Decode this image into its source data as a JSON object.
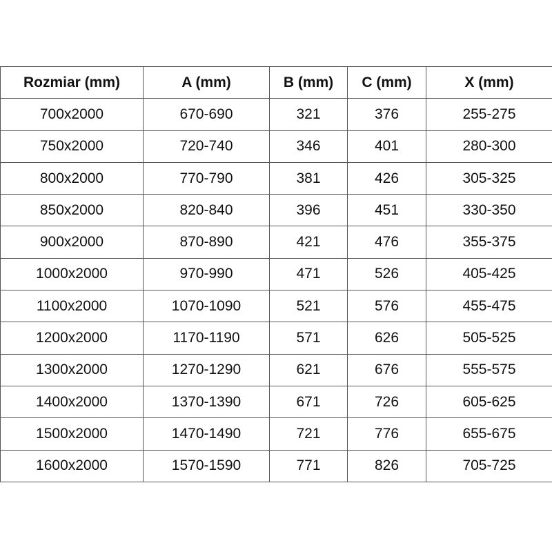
{
  "headers": [
    "Rozmiar (mm)",
    "A (mm)",
    "B (mm)",
    "C (mm)",
    "X (mm)"
  ],
  "rows": [
    [
      "700x2000",
      "670-690",
      "321",
      "376",
      "255-275"
    ],
    [
      "750x2000",
      "720-740",
      "346",
      "401",
      "280-300"
    ],
    [
      "800x2000",
      "770-790",
      "381",
      "426",
      "305-325"
    ],
    [
      "850x2000",
      "820-840",
      "396",
      "451",
      "330-350"
    ],
    [
      "900x2000",
      "870-890",
      "421",
      "476",
      "355-375"
    ],
    [
      "1000x2000",
      "970-990",
      "471",
      "526",
      "405-425"
    ],
    [
      "1100x2000",
      "1070-1090",
      "521",
      "576",
      "455-475"
    ],
    [
      "1200x2000",
      "1170-1190",
      "571",
      "626",
      "505-525"
    ],
    [
      "1300x2000",
      "1270-1290",
      "621",
      "676",
      "555-575"
    ],
    [
      "1400x2000",
      "1370-1390",
      "671",
      "726",
      "605-625"
    ],
    [
      "1500x2000",
      "1470-1490",
      "721",
      "776",
      "655-675"
    ],
    [
      "1600x2000",
      "1570-1590",
      "771",
      "826",
      "705-725"
    ]
  ]
}
